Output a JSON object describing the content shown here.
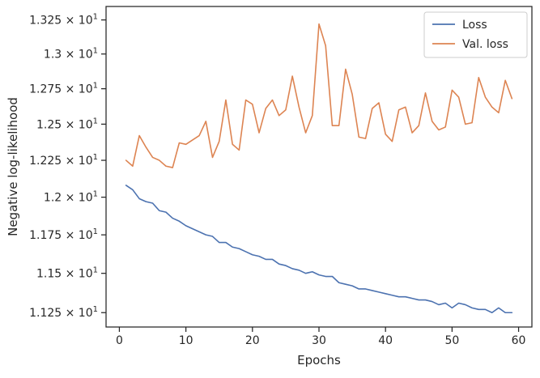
{
  "chart_data": {
    "type": "line",
    "title": "",
    "xlabel": "Epochs",
    "ylabel": "Negative log-likelihood",
    "xlim": [
      -2,
      62
    ],
    "ylim": [
      11.16,
      13.35
    ],
    "yscale": "log",
    "grid": false,
    "legend_position": "top-right",
    "x_ticks": [
      {
        "value": 0,
        "label": "0"
      },
      {
        "value": 10,
        "label": "10"
      },
      {
        "value": 20,
        "label": "20"
      },
      {
        "value": 30,
        "label": "30"
      },
      {
        "value": 40,
        "label": "40"
      },
      {
        "value": 50,
        "label": "50"
      },
      {
        "value": 60,
        "label": "60"
      }
    ],
    "y_ticks": [
      {
        "value": 11.25,
        "mant": "1.125"
      },
      {
        "value": 11.5,
        "mant": "1.15"
      },
      {
        "value": 11.75,
        "mant": "1.175"
      },
      {
        "value": 12.0,
        "mant": "1.2"
      },
      {
        "value": 12.25,
        "mant": "1.225"
      },
      {
        "value": 12.5,
        "mant": "1.25"
      },
      {
        "value": 12.75,
        "mant": "1.275"
      },
      {
        "value": 13.0,
        "mant": "1.3"
      },
      {
        "value": 13.25,
        "mant": "1.325"
      }
    ],
    "y_tick_suffix_base": "10",
    "y_tick_suffix_exp": "1",
    "x": [
      1,
      2,
      3,
      4,
      5,
      6,
      7,
      8,
      9,
      10,
      11,
      12,
      13,
      14,
      15,
      16,
      17,
      18,
      19,
      20,
      21,
      22,
      23,
      24,
      25,
      26,
      27,
      28,
      29,
      30,
      31,
      32,
      33,
      34,
      35,
      36,
      37,
      38,
      39,
      40,
      41,
      42,
      43,
      44,
      45,
      46,
      47,
      48,
      49,
      50,
      51,
      52,
      53,
      54,
      55,
      56,
      57,
      58,
      59
    ],
    "series": [
      {
        "name": "Loss",
        "color": "#4c72b0",
        "values": [
          12.08,
          12.05,
          11.99,
          11.97,
          11.96,
          11.91,
          11.9,
          11.86,
          11.84,
          11.81,
          11.79,
          11.77,
          11.75,
          11.74,
          11.7,
          11.7,
          11.67,
          11.66,
          11.64,
          11.62,
          11.61,
          11.59,
          11.59,
          11.56,
          11.55,
          11.53,
          11.52,
          11.5,
          11.51,
          11.49,
          11.48,
          11.48,
          11.44,
          11.43,
          11.42,
          11.4,
          11.4,
          11.39,
          11.38,
          11.37,
          11.36,
          11.35,
          11.35,
          11.34,
          11.33,
          11.33,
          11.32,
          11.3,
          11.31,
          11.28,
          11.31,
          11.3,
          11.28,
          11.27,
          11.27,
          11.25,
          11.28,
          11.25,
          11.25
        ]
      },
      {
        "name": "Val. loss",
        "color": "#dd8452",
        "values": [
          12.25,
          12.21,
          12.42,
          12.34,
          12.27,
          12.25,
          12.21,
          12.2,
          12.37,
          12.36,
          12.39,
          12.42,
          12.52,
          12.27,
          12.38,
          12.67,
          12.36,
          12.32,
          12.67,
          12.64,
          12.44,
          12.61,
          12.67,
          12.56,
          12.6,
          12.84,
          12.62,
          12.44,
          12.56,
          13.22,
          13.06,
          12.49,
          12.49,
          12.89,
          12.71,
          12.41,
          12.4,
          12.61,
          12.65,
          12.43,
          12.38,
          12.6,
          12.62,
          12.44,
          12.49,
          12.72,
          12.52,
          12.46,
          12.48,
          12.74,
          12.69,
          12.5,
          12.51,
          12.83,
          12.69,
          12.62,
          12.58,
          12.81,
          12.68
        ]
      }
    ]
  }
}
